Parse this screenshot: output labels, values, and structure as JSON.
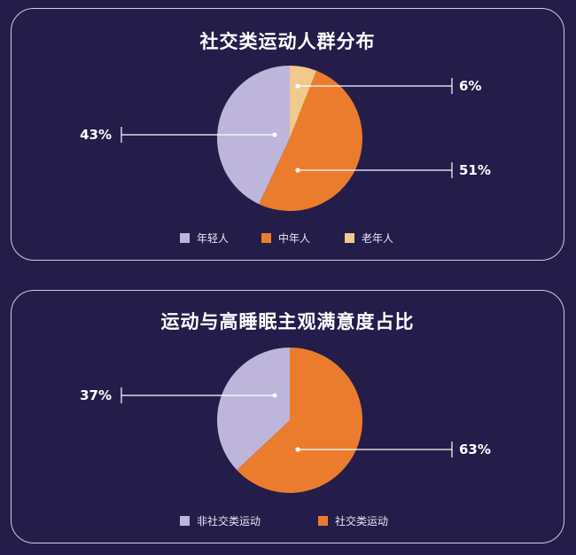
{
  "colors": {
    "young": "#bdb6da",
    "middle": "#ec7c2d",
    "old": "#f2c98c",
    "nonsocial": "#bdb6da",
    "social": "#ec7c2d"
  },
  "chart_data": [
    {
      "type": "pie",
      "title": "社交类运动人群分布",
      "slices": [
        {
          "label": "老年人",
          "value": 6,
          "display": "6%",
          "color": "#f2c98c"
        },
        {
          "label": "中年人",
          "value": 51,
          "display": "51%",
          "color": "#ec7c2d"
        },
        {
          "label": "年轻人",
          "value": 43,
          "display": "43%",
          "color": "#bdb6da"
        }
      ],
      "legend": [
        "年轻人",
        "中年人",
        "老年人"
      ],
      "legend_position": "bottom"
    },
    {
      "type": "pie",
      "title": "运动与高睡眠主观满意度占比",
      "slices": [
        {
          "label": "社交类运动",
          "value": 63,
          "display": "63%",
          "color": "#ec7c2d"
        },
        {
          "label": "非社交类运动",
          "value": 37,
          "display": "37%",
          "color": "#bdb6da"
        }
      ],
      "legend": [
        "非社交类运动",
        "社交类运动"
      ],
      "legend_position": "bottom"
    }
  ]
}
